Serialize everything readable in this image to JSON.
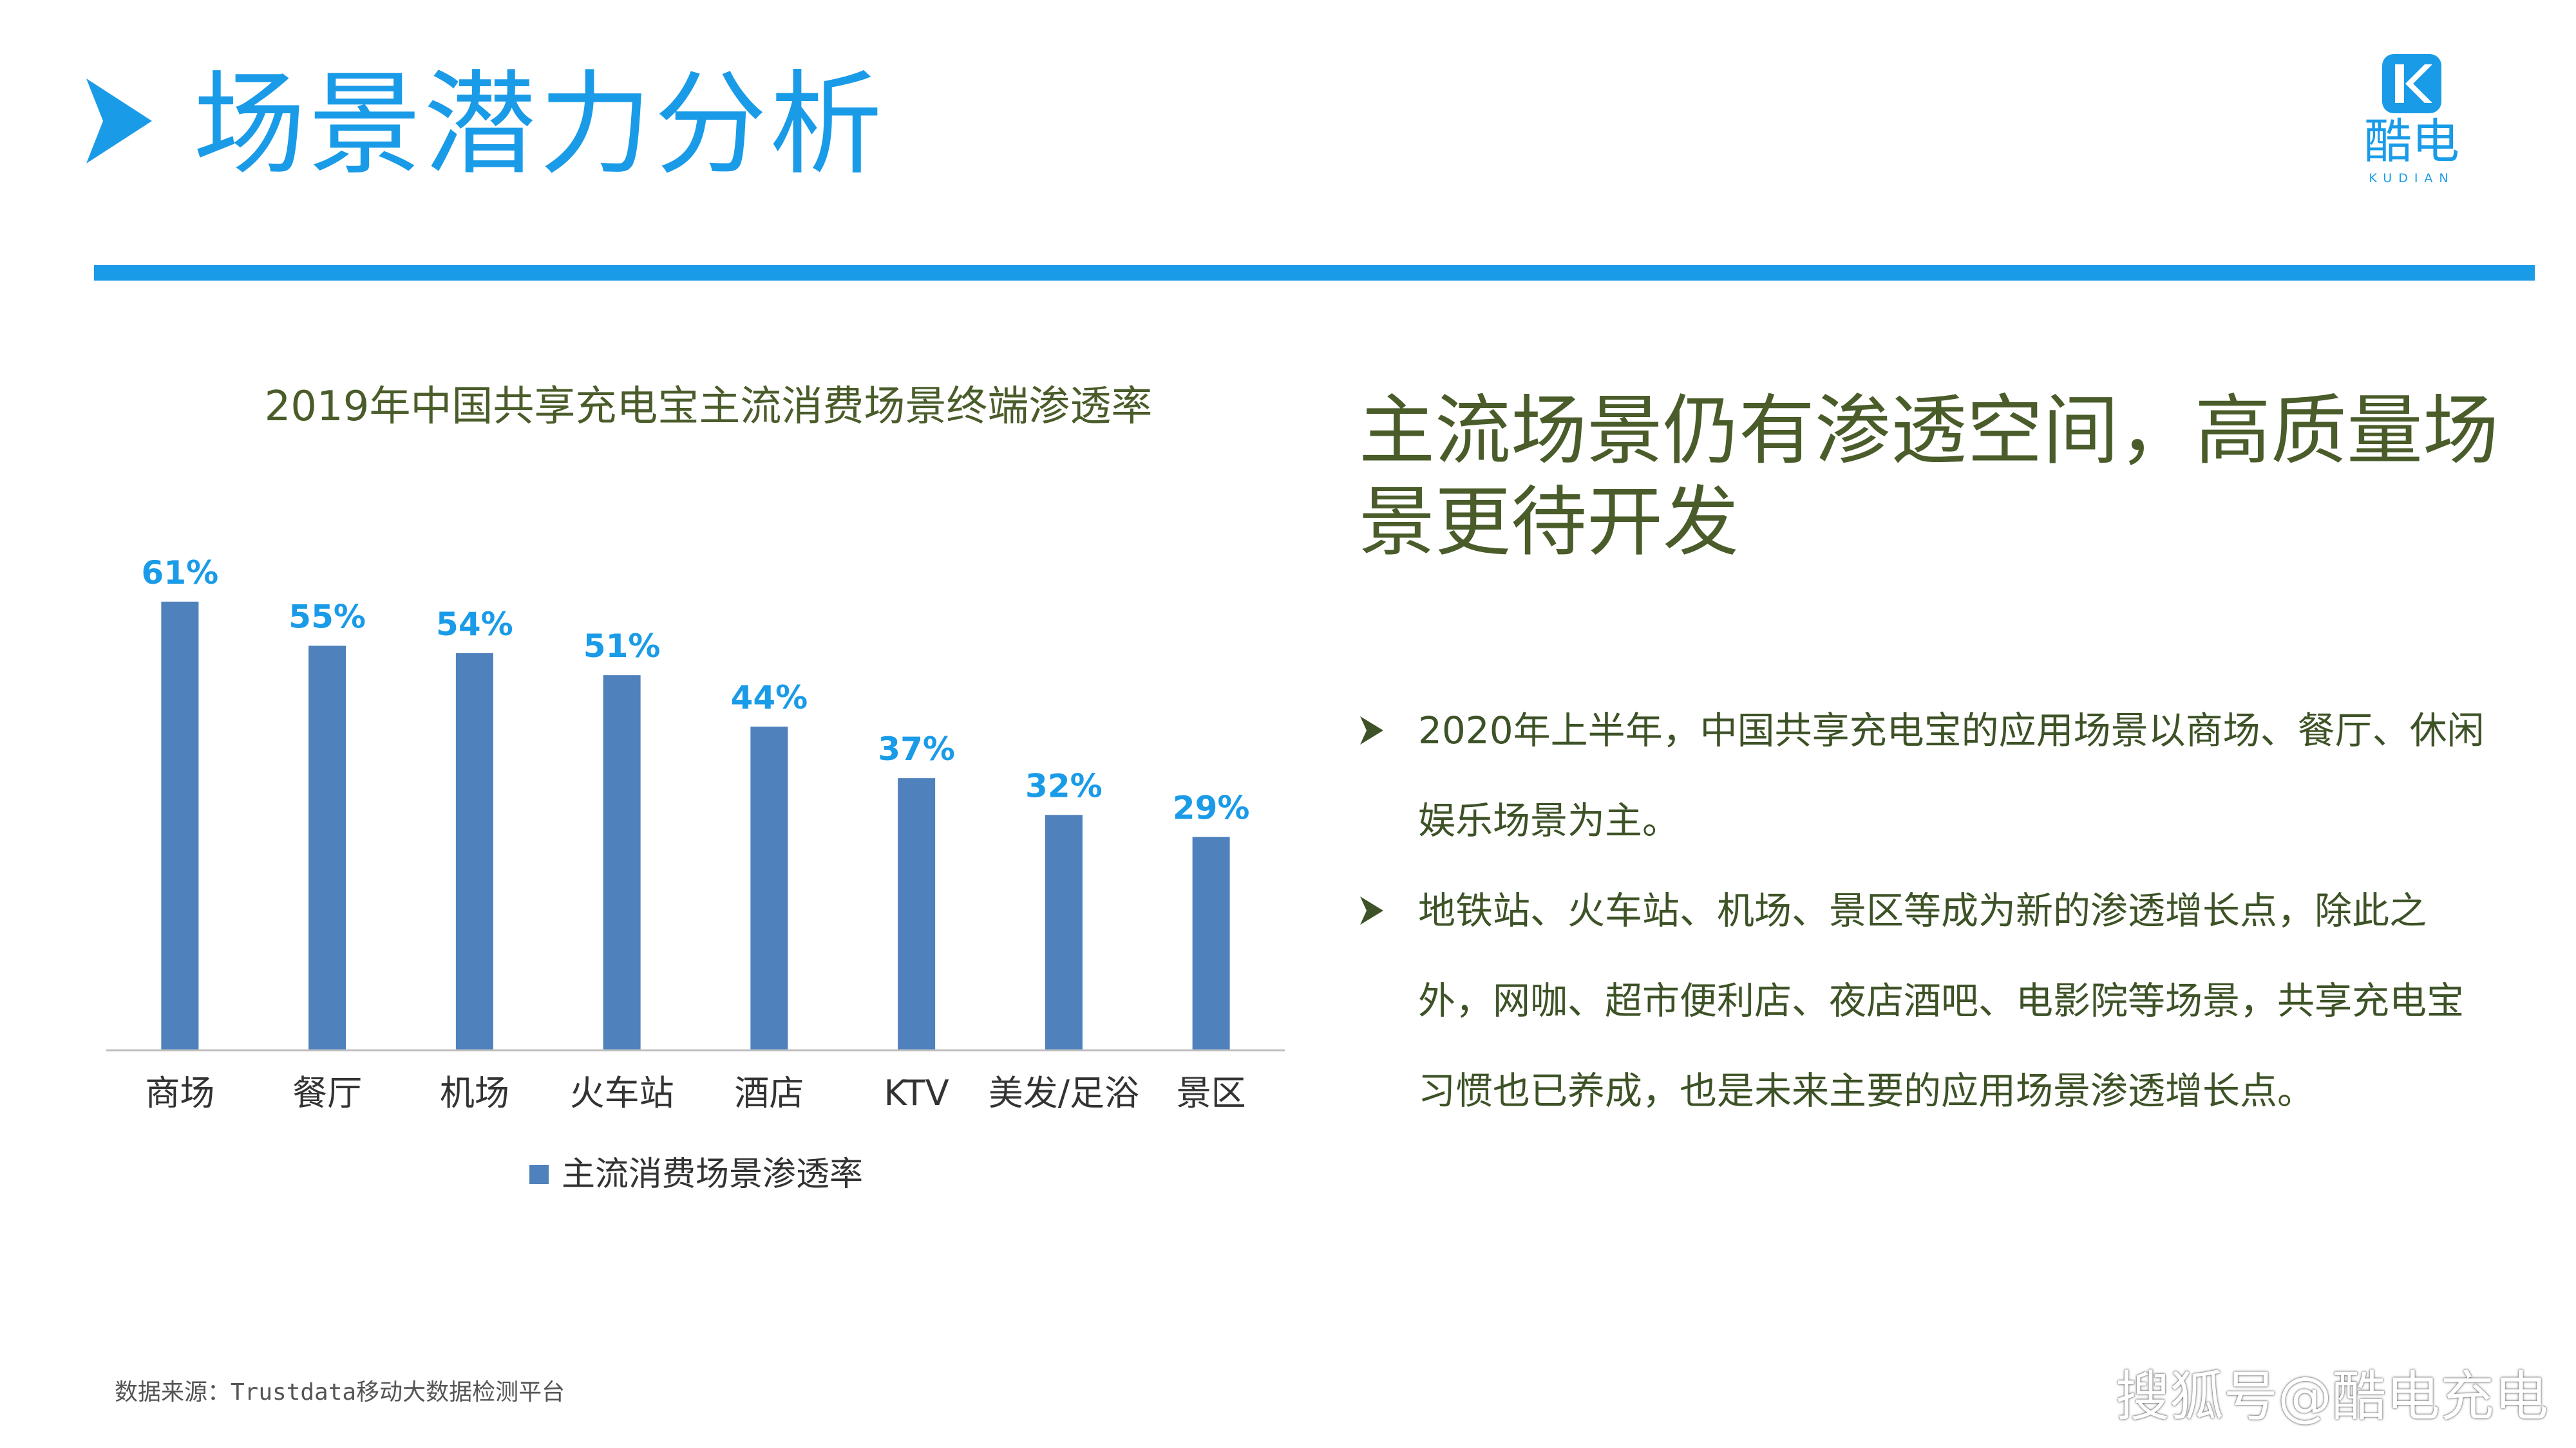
{
  "header": {
    "title": "场景潜力分析",
    "accent_color": "#1a9be8"
  },
  "logo": {
    "icon": "k-logo-icon",
    "name_cn": "酷电",
    "name_en": "KUDIAN"
  },
  "chart_data": {
    "type": "bar",
    "title": "2019年中国共享充电宝主流消费场景终端渗透率",
    "categories": [
      "商场",
      "餐厅",
      "机场",
      "火车站",
      "酒店",
      "KTV",
      "美发/足浴",
      "景区"
    ],
    "series": [
      {
        "name": "主流消费场景渗透率",
        "values": [
          61,
          55,
          54,
          51,
          44,
          37,
          32,
          29
        ],
        "labels": [
          "61%",
          "55%",
          "54%",
          "51%",
          "44%",
          "37%",
          "32%",
          "29%"
        ],
        "color": "#4f81bd",
        "label_color": "#1a9be8"
      }
    ],
    "ylim": [
      0,
      70
    ],
    "grid": false,
    "legend": "bottom"
  },
  "panel": {
    "headline": "主流场景仍有渗透空间，高质量场景更待开发",
    "bullets": [
      "2020年上半年，中国共享充电宝的应用场景以商场、餐厅、休闲娱乐场景为主。",
      "地铁站、火车站、机场、景区等成为新的渗透增长点，除此之外，网咖、超市便利店、夜店酒吧、电影院等场景，共享充电宝习惯也已养成，也是未来主要的应用场景渗透增长点。"
    ],
    "bullet_icon": "arrowhead-bullet-icon"
  },
  "footer": {
    "source": "数据来源：Trustdata移动大数据检测平台",
    "watermark": "搜狐号@酷电充电"
  }
}
